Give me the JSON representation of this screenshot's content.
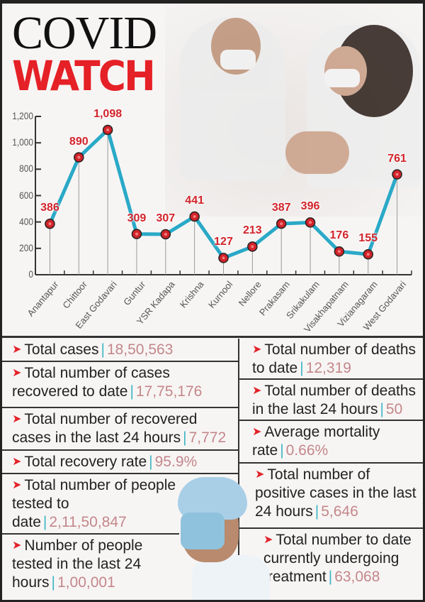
{
  "header": {
    "title_line1": "COVID",
    "title_line2": "WATCH"
  },
  "chart_data": {
    "type": "line",
    "title": "COVID WATCH",
    "xlabel": "",
    "ylabel": "",
    "ylim": [
      0,
      1200
    ],
    "yticks": [
      "0",
      "200",
      "400",
      "600",
      "800",
      "1,000",
      "1,200"
    ],
    "categories": [
      "Anantapur",
      "Chittoor",
      "East Godavari",
      "Guntur",
      "YSR Kadapa",
      "Krishna",
      "Kurnool",
      "Nellore",
      "Prakasam",
      "Srikakulam",
      "Visakhapatnam",
      "Vizianagaram",
      "West Godavari"
    ],
    "values": [
      386,
      890,
      1098,
      309,
      307,
      441,
      127,
      213,
      387,
      396,
      176,
      155,
      761
    ],
    "value_labels": [
      "386",
      "890",
      "1,098",
      "309",
      "307",
      "441",
      "127",
      "213",
      "387",
      "396",
      "176",
      "155",
      "761"
    ],
    "line_color": "#2aa9c7",
    "marker_color": "#d2232a",
    "grid": false,
    "legend": null
  },
  "stats": {
    "left": [
      {
        "label": "Total cases",
        "value": "18,50,563"
      },
      {
        "label": "Total number of cases recovered to date",
        "value": "17,75,176"
      },
      {
        "label": "Total number of recovered cases in the last 24 hours",
        "value": "7,772"
      },
      {
        "label": "Total recovery rate",
        "value": "95.9%"
      },
      {
        "label": "Total number of people tested to date",
        "value": "2,11,50,847"
      },
      {
        "label": "Number of people tested in the last 24 hours",
        "value": "1,00,001"
      }
    ],
    "right": [
      {
        "label": "Total number of deaths to date",
        "value": "12,319"
      },
      {
        "label": "Total number of deaths in the last 24 hours",
        "value": "50"
      },
      {
        "label": "Average mortality rate",
        "value": "0.66%"
      },
      {
        "label": "Total number of positive cases in the last 24 hours",
        "value": "5,646"
      },
      {
        "label": "Total number to date currently undergoing treatment",
        "value": "63,068"
      }
    ],
    "arrow_icon": "➤",
    "separator": "|"
  },
  "colors": {
    "accent_red": "#e52027",
    "line": "#2aa9c7",
    "value_text": "#c4868a",
    "separator": "#3fb6c4"
  }
}
